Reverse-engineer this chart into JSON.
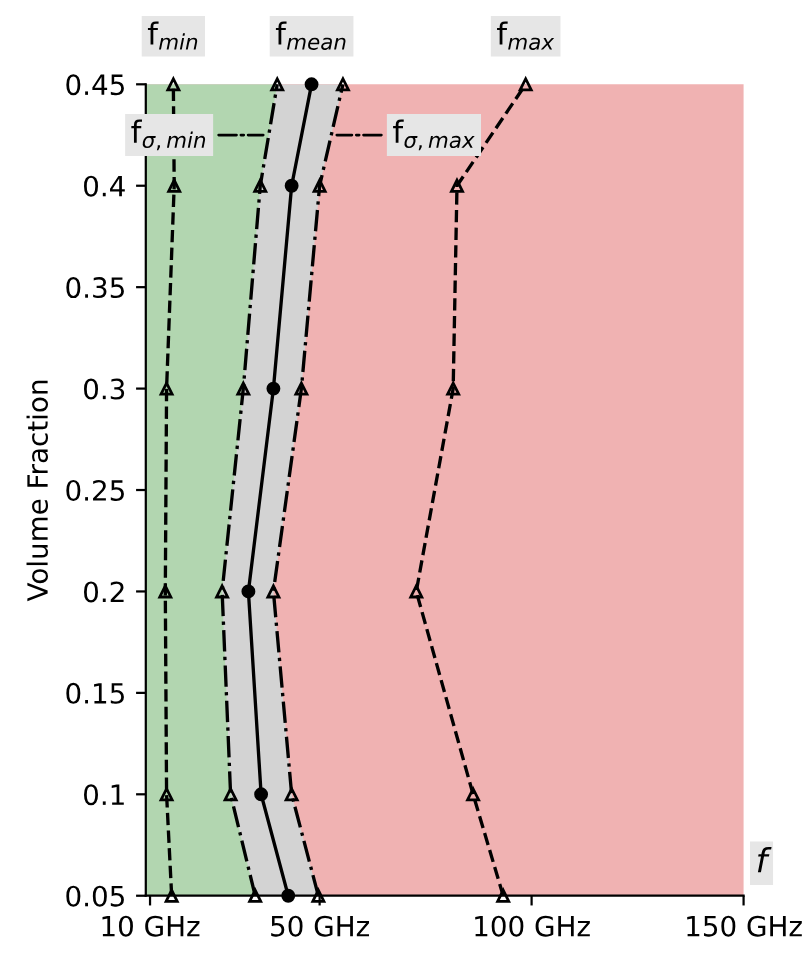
{
  "chart_data": {
    "type": "line",
    "orientation": "horizontal",
    "ylabel": "Volume Fraction",
    "xlabel": "f",
    "x": [
      0.05,
      0.1,
      0.2,
      0.3,
      0.4,
      0.45
    ],
    "xlim": [
      9,
      150
    ],
    "xticks": [
      {
        "value": 10,
        "label": "10 GHz"
      },
      {
        "value": 50,
        "label": "50 GHz"
      },
      {
        "value": 100,
        "label": "100 GHz"
      },
      {
        "value": 150,
        "label": "150 GHz"
      }
    ],
    "ylim": [
      0.05,
      0.45
    ],
    "yticks": [
      0.05,
      0.1,
      0.15,
      0.2,
      0.25,
      0.3,
      0.35,
      0.4,
      0.45
    ],
    "grid": false,
    "series": [
      {
        "name": "f$_{min}$",
        "color": "#000000",
        "marker": "triangle",
        "line_style": "dashed",
        "values": [
          15.1,
          13.9,
          13.6,
          13.9,
          15.7,
          15.5
        ]
      },
      {
        "name": "f$_{σ,min}$",
        "type": "area",
        "color": "#b2d6b0",
        "marker": "triangle",
        "line_style": "dashdot",
        "values": [
          34.8,
          29,
          27,
          32,
          36,
          40
        ]
      },
      {
        "name": "f$_{mean}$",
        "color": "#000000",
        "marker": "circle",
        "line_style": "solid",
        "values": [
          42.6,
          36.2,
          33.2,
          39.1,
          43.4,
          48.1
        ]
      },
      {
        "name": "f$_{σ,max}$",
        "type": "area",
        "color": "#d3d3d3",
        "marker": "triangle",
        "line_style": "dashdot",
        "values": [
          49.7,
          43.4,
          39.1,
          45.7,
          50,
          55.5
        ]
      },
      {
        "name": "f$_{max}$",
        "color": "#000000",
        "marker": "triangle",
        "line_style": "dashed",
        "values": [
          93.3,
          86.2,
          72.8,
          81.5,
          82.4,
          98.6
        ]
      }
    ]
  }
}
